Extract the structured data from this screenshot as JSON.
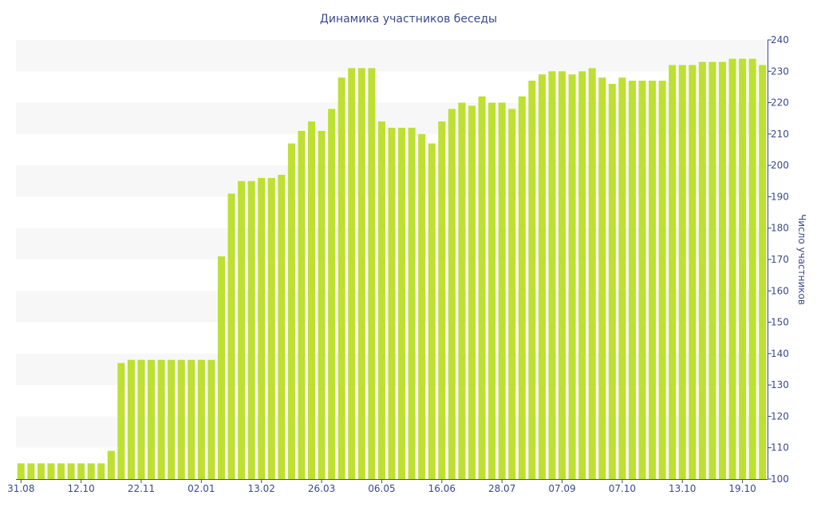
{
  "chart_data": {
    "type": "bar",
    "title": "Динамика участников беседы",
    "ylabel": "Число участников",
    "xlabel": "",
    "ylim": [
      100,
      240
    ],
    "yticks": [
      100,
      110,
      120,
      130,
      140,
      150,
      160,
      170,
      180,
      190,
      200,
      210,
      220,
      230,
      240
    ],
    "x_tick_labels": [
      {
        "index": 0,
        "label": "31.08"
      },
      {
        "index": 6,
        "label": "12.10"
      },
      {
        "index": 12,
        "label": "22.11"
      },
      {
        "index": 18,
        "label": "02.01"
      },
      {
        "index": 24,
        "label": "13.02"
      },
      {
        "index": 30,
        "label": "26.03"
      },
      {
        "index": 36,
        "label": "06.05"
      },
      {
        "index": 42,
        "label": "16.06"
      },
      {
        "index": 48,
        "label": "28.07"
      },
      {
        "index": 54,
        "label": "07.09"
      },
      {
        "index": 60,
        "label": "07.10"
      },
      {
        "index": 66,
        "label": "13.10"
      },
      {
        "index": 72,
        "label": "19.10"
      }
    ],
    "values": [
      105,
      105,
      105,
      105,
      105,
      105,
      105,
      105,
      105,
      109,
      137,
      138,
      138,
      138,
      138,
      138,
      138,
      138,
      138,
      138,
      171,
      191,
      195,
      195,
      196,
      196,
      197,
      207,
      211,
      214,
      211,
      218,
      228,
      231,
      231,
      231,
      214,
      212,
      212,
      212,
      210,
      207,
      214,
      218,
      220,
      219,
      222,
      220,
      220,
      218,
      222,
      227,
      229,
      230,
      230,
      229,
      230,
      231,
      228,
      226,
      228,
      227,
      227,
      227,
      227,
      232,
      232,
      232,
      233,
      233,
      233,
      234,
      234,
      234,
      232
    ],
    "bar_color": "#bde033",
    "band_color": "#f7f7f7",
    "axis_color": "#3a4a8c",
    "grid": "alternating-bands",
    "y_axis_side": "right"
  }
}
